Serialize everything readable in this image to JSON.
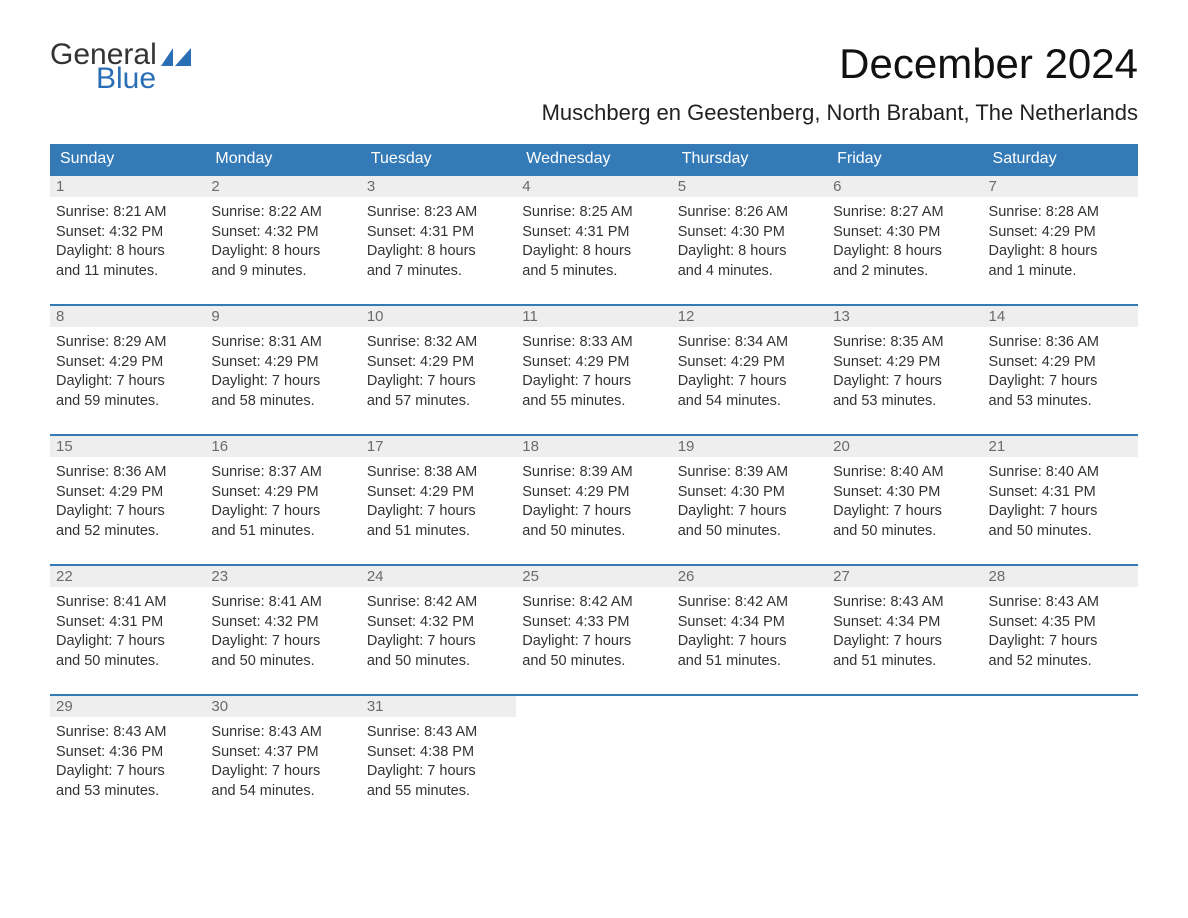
{
  "logo": {
    "word1": "General",
    "word2": "Blue",
    "flag_color": "#2a6fb5"
  },
  "title": "December 2024",
  "location": "Muschberg en Geestenberg, North Brabant, The Netherlands",
  "colors": {
    "header_bg": "#337ab7",
    "header_text": "#ffffff",
    "daynum_bg": "#eeeeee",
    "daynum_text": "#6b6b6b",
    "cell_border": "#337ab7",
    "body_text": "#333333"
  },
  "weekdays": [
    "Sunday",
    "Monday",
    "Tuesday",
    "Wednesday",
    "Thursday",
    "Friday",
    "Saturday"
  ],
  "weeks": [
    [
      {
        "n": "1",
        "sunrise": "Sunrise: 8:21 AM",
        "sunset": "Sunset: 4:32 PM",
        "dl1": "Daylight: 8 hours",
        "dl2": "and 11 minutes."
      },
      {
        "n": "2",
        "sunrise": "Sunrise: 8:22 AM",
        "sunset": "Sunset: 4:32 PM",
        "dl1": "Daylight: 8 hours",
        "dl2": "and 9 minutes."
      },
      {
        "n": "3",
        "sunrise": "Sunrise: 8:23 AM",
        "sunset": "Sunset: 4:31 PM",
        "dl1": "Daylight: 8 hours",
        "dl2": "and 7 minutes."
      },
      {
        "n": "4",
        "sunrise": "Sunrise: 8:25 AM",
        "sunset": "Sunset: 4:31 PM",
        "dl1": "Daylight: 8 hours",
        "dl2": "and 5 minutes."
      },
      {
        "n": "5",
        "sunrise": "Sunrise: 8:26 AM",
        "sunset": "Sunset: 4:30 PM",
        "dl1": "Daylight: 8 hours",
        "dl2": "and 4 minutes."
      },
      {
        "n": "6",
        "sunrise": "Sunrise: 8:27 AM",
        "sunset": "Sunset: 4:30 PM",
        "dl1": "Daylight: 8 hours",
        "dl2": "and 2 minutes."
      },
      {
        "n": "7",
        "sunrise": "Sunrise: 8:28 AM",
        "sunset": "Sunset: 4:29 PM",
        "dl1": "Daylight: 8 hours",
        "dl2": "and 1 minute."
      }
    ],
    [
      {
        "n": "8",
        "sunrise": "Sunrise: 8:29 AM",
        "sunset": "Sunset: 4:29 PM",
        "dl1": "Daylight: 7 hours",
        "dl2": "and 59 minutes."
      },
      {
        "n": "9",
        "sunrise": "Sunrise: 8:31 AM",
        "sunset": "Sunset: 4:29 PM",
        "dl1": "Daylight: 7 hours",
        "dl2": "and 58 minutes."
      },
      {
        "n": "10",
        "sunrise": "Sunrise: 8:32 AM",
        "sunset": "Sunset: 4:29 PM",
        "dl1": "Daylight: 7 hours",
        "dl2": "and 57 minutes."
      },
      {
        "n": "11",
        "sunrise": "Sunrise: 8:33 AM",
        "sunset": "Sunset: 4:29 PM",
        "dl1": "Daylight: 7 hours",
        "dl2": "and 55 minutes."
      },
      {
        "n": "12",
        "sunrise": "Sunrise: 8:34 AM",
        "sunset": "Sunset: 4:29 PM",
        "dl1": "Daylight: 7 hours",
        "dl2": "and 54 minutes."
      },
      {
        "n": "13",
        "sunrise": "Sunrise: 8:35 AM",
        "sunset": "Sunset: 4:29 PM",
        "dl1": "Daylight: 7 hours",
        "dl2": "and 53 minutes."
      },
      {
        "n": "14",
        "sunrise": "Sunrise: 8:36 AM",
        "sunset": "Sunset: 4:29 PM",
        "dl1": "Daylight: 7 hours",
        "dl2": "and 53 minutes."
      }
    ],
    [
      {
        "n": "15",
        "sunrise": "Sunrise: 8:36 AM",
        "sunset": "Sunset: 4:29 PM",
        "dl1": "Daylight: 7 hours",
        "dl2": "and 52 minutes."
      },
      {
        "n": "16",
        "sunrise": "Sunrise: 8:37 AM",
        "sunset": "Sunset: 4:29 PM",
        "dl1": "Daylight: 7 hours",
        "dl2": "and 51 minutes."
      },
      {
        "n": "17",
        "sunrise": "Sunrise: 8:38 AM",
        "sunset": "Sunset: 4:29 PM",
        "dl1": "Daylight: 7 hours",
        "dl2": "and 51 minutes."
      },
      {
        "n": "18",
        "sunrise": "Sunrise: 8:39 AM",
        "sunset": "Sunset: 4:29 PM",
        "dl1": "Daylight: 7 hours",
        "dl2": "and 50 minutes."
      },
      {
        "n": "19",
        "sunrise": "Sunrise: 8:39 AM",
        "sunset": "Sunset: 4:30 PM",
        "dl1": "Daylight: 7 hours",
        "dl2": "and 50 minutes."
      },
      {
        "n": "20",
        "sunrise": "Sunrise: 8:40 AM",
        "sunset": "Sunset: 4:30 PM",
        "dl1": "Daylight: 7 hours",
        "dl2": "and 50 minutes."
      },
      {
        "n": "21",
        "sunrise": "Sunrise: 8:40 AM",
        "sunset": "Sunset: 4:31 PM",
        "dl1": "Daylight: 7 hours",
        "dl2": "and 50 minutes."
      }
    ],
    [
      {
        "n": "22",
        "sunrise": "Sunrise: 8:41 AM",
        "sunset": "Sunset: 4:31 PM",
        "dl1": "Daylight: 7 hours",
        "dl2": "and 50 minutes."
      },
      {
        "n": "23",
        "sunrise": "Sunrise: 8:41 AM",
        "sunset": "Sunset: 4:32 PM",
        "dl1": "Daylight: 7 hours",
        "dl2": "and 50 minutes."
      },
      {
        "n": "24",
        "sunrise": "Sunrise: 8:42 AM",
        "sunset": "Sunset: 4:32 PM",
        "dl1": "Daylight: 7 hours",
        "dl2": "and 50 minutes."
      },
      {
        "n": "25",
        "sunrise": "Sunrise: 8:42 AM",
        "sunset": "Sunset: 4:33 PM",
        "dl1": "Daylight: 7 hours",
        "dl2": "and 50 minutes."
      },
      {
        "n": "26",
        "sunrise": "Sunrise: 8:42 AM",
        "sunset": "Sunset: 4:34 PM",
        "dl1": "Daylight: 7 hours",
        "dl2": "and 51 minutes."
      },
      {
        "n": "27",
        "sunrise": "Sunrise: 8:43 AM",
        "sunset": "Sunset: 4:34 PM",
        "dl1": "Daylight: 7 hours",
        "dl2": "and 51 minutes."
      },
      {
        "n": "28",
        "sunrise": "Sunrise: 8:43 AM",
        "sunset": "Sunset: 4:35 PM",
        "dl1": "Daylight: 7 hours",
        "dl2": "and 52 minutes."
      }
    ],
    [
      {
        "n": "29",
        "sunrise": "Sunrise: 8:43 AM",
        "sunset": "Sunset: 4:36 PM",
        "dl1": "Daylight: 7 hours",
        "dl2": "and 53 minutes."
      },
      {
        "n": "30",
        "sunrise": "Sunrise: 8:43 AM",
        "sunset": "Sunset: 4:37 PM",
        "dl1": "Daylight: 7 hours",
        "dl2": "and 54 minutes."
      },
      {
        "n": "31",
        "sunrise": "Sunrise: 8:43 AM",
        "sunset": "Sunset: 4:38 PM",
        "dl1": "Daylight: 7 hours",
        "dl2": "and 55 minutes."
      },
      null,
      null,
      null,
      null
    ]
  ]
}
